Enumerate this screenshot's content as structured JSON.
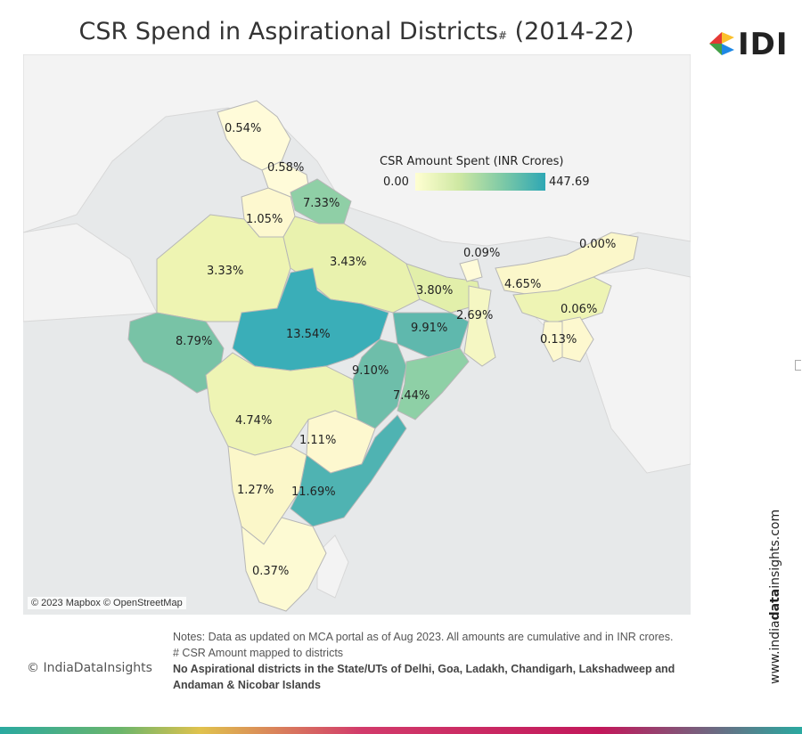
{
  "title": {
    "main": "CSR Spend in Aspirational Districts",
    "hash": "#",
    "years": "(2014-22)"
  },
  "logo": {
    "text": "IDI"
  },
  "legend": {
    "title": "CSR Amount Spent (INR Crores)",
    "min": "0.00",
    "max": "447.69",
    "colors": [
      "#ffffd2",
      "#cfe8a3",
      "#7fcaa6",
      "#2ea7b4"
    ]
  },
  "regions": [
    {
      "label": "0.54%"
    },
    {
      "label": "0.58%"
    },
    {
      "label": "7.33%"
    },
    {
      "label": "1.05%"
    },
    {
      "label": "3.33%"
    },
    {
      "label": "3.43%"
    },
    {
      "label": "0.09%"
    },
    {
      "label": "0.00%"
    },
    {
      "label": "3.80%"
    },
    {
      "label": "4.65%"
    },
    {
      "label": "2.69%"
    },
    {
      "label": "0.06%"
    },
    {
      "label": "8.79%"
    },
    {
      "label": "13.54%"
    },
    {
      "label": "9.91%"
    },
    {
      "label": "0.13%"
    },
    {
      "label": "9.10%"
    },
    {
      "label": "7.44%"
    },
    {
      "label": "4.74%"
    },
    {
      "label": "1.11%"
    },
    {
      "label": "1.27%"
    },
    {
      "label": "11.69%"
    },
    {
      "label": "0.37%"
    }
  ],
  "attribution": "© 2023 Mapbox © OpenStreetMap",
  "notes": {
    "line1": "Notes: Data as updated on MCA portal as of Aug 2023.  All amounts are cumulative and in INR crores.",
    "line2": "# CSR Amount mapped to districts",
    "line3": "No Aspirational districts in the State/UTs of Delhi, Goa, Ladakh, Chandigarh, Lakshadweep and Andaman & Nicobar Islands"
  },
  "copyright": "© IndiaDataInsights",
  "site": {
    "pre": "www.india",
    "bold": "data",
    "post": "insights.com"
  }
}
